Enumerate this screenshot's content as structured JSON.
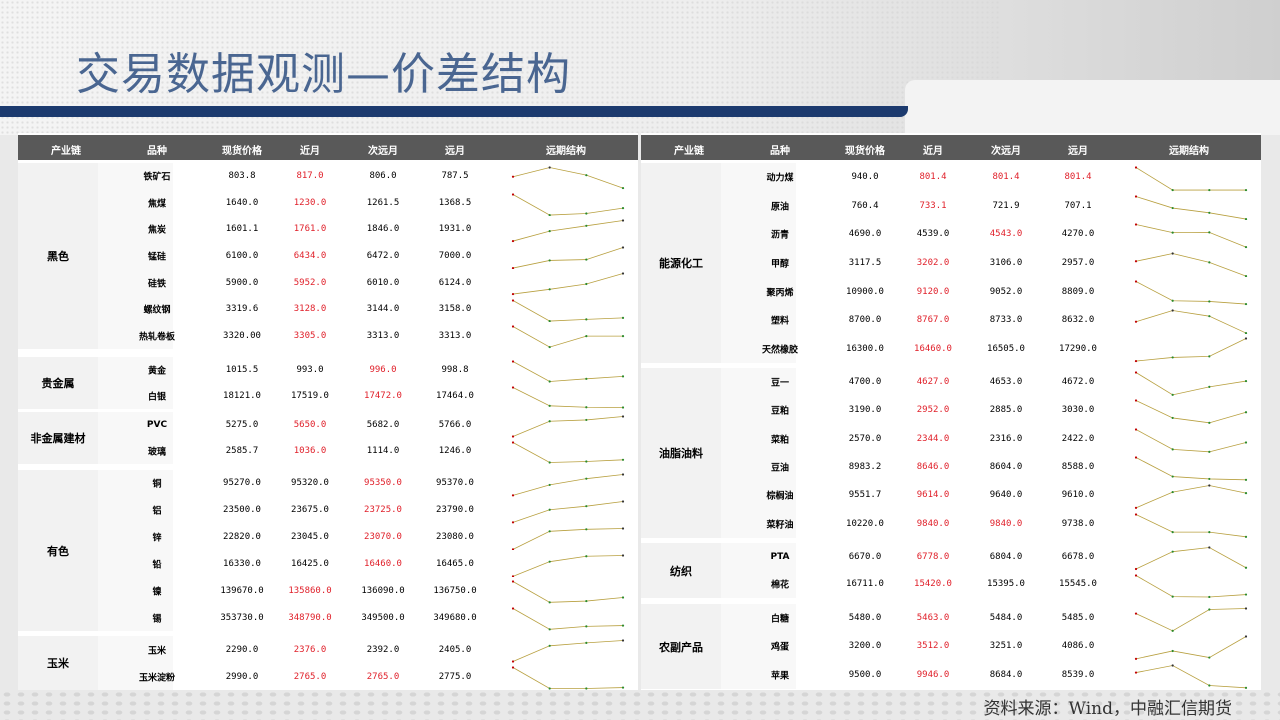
{
  "title": "交易数据观测—价差结构",
  "source": "资料来源：Wind，中融汇信期货",
  "headers": [
    "产业链",
    "品种",
    "现货价格",
    "近月",
    "次远月",
    "远月",
    "远期结构"
  ],
  "colors": {
    "header_bg": "#595959",
    "highlight": "#e0202a",
    "title": "#4a6691",
    "sparkline": "#b8a040"
  },
  "left": [
    {
      "chain": "黑色",
      "rows": [
        {
          "name": "铁矿石",
          "spot": "803.8",
          "near": "817.0",
          "next": "806.0",
          "far": "787.5",
          "red": [
            1
          ]
        },
        {
          "name": "焦煤",
          "spot": "1640.0",
          "near": "1230.0",
          "next": "1261.5",
          "far": "1368.5",
          "red": [
            1
          ]
        },
        {
          "name": "焦炭",
          "spot": "1601.1",
          "near": "1761.0",
          "next": "1846.0",
          "far": "1931.0",
          "red": [
            1
          ]
        },
        {
          "name": "锰硅",
          "spot": "6100.0",
          "near": "6434.0",
          "next": "6472.0",
          "far": "7000.0",
          "red": [
            1
          ]
        },
        {
          "name": "硅铁",
          "spot": "5900.0",
          "near": "5952.0",
          "next": "6010.0",
          "far": "6124.0",
          "red": [
            1
          ]
        },
        {
          "name": "螺纹钢",
          "spot": "3319.6",
          "near": "3128.0",
          "next": "3144.0",
          "far": "3158.0",
          "red": [
            1
          ]
        },
        {
          "name": "热轧卷板",
          "spot": "3320.00",
          "near": "3305.0",
          "next": "3313.0",
          "far": "3313.0",
          "red": [
            1
          ]
        }
      ]
    },
    {
      "chain": "贵金属",
      "rows": [
        {
          "name": "黄金",
          "spot": "1015.5",
          "near": "993.0",
          "next": "996.0",
          "far": "998.8",
          "red": [
            2
          ]
        },
        {
          "name": "白银",
          "spot": "18121.0",
          "near": "17519.0",
          "next": "17472.0",
          "far": "17464.0",
          "red": [
            2
          ]
        }
      ]
    },
    {
      "chain": "非金属建材",
      "rows": [
        {
          "name": "PVC",
          "spot": "5275.0",
          "near": "5650.0",
          "next": "5682.0",
          "far": "5766.0",
          "red": [
            1
          ]
        },
        {
          "name": "玻璃",
          "spot": "2585.7",
          "near": "1036.0",
          "next": "1114.0",
          "far": "1246.0",
          "red": [
            1
          ]
        }
      ]
    },
    {
      "chain": "有色",
      "rows": [
        {
          "name": "铜",
          "spot": "95270.0",
          "near": "95320.0",
          "next": "95350.0",
          "far": "95370.0",
          "red": [
            2
          ]
        },
        {
          "name": "铝",
          "spot": "23500.0",
          "near": "23675.0",
          "next": "23725.0",
          "far": "23790.0",
          "red": [
            2
          ]
        },
        {
          "name": "锌",
          "spot": "22820.0",
          "near": "23045.0",
          "next": "23070.0",
          "far": "23080.0",
          "red": [
            2
          ]
        },
        {
          "name": "铅",
          "spot": "16330.0",
          "near": "16425.0",
          "next": "16460.0",
          "far": "16465.0",
          "red": [
            2
          ]
        },
        {
          "name": "镍",
          "spot": "139670.0",
          "near": "135860.0",
          "next": "136090.0",
          "far": "136750.0",
          "red": [
            1
          ]
        },
        {
          "name": "锡",
          "spot": "353730.0",
          "near": "348790.0",
          "next": "349500.0",
          "far": "349680.0",
          "red": [
            1
          ]
        }
      ]
    },
    {
      "chain": "玉米",
      "rows": [
        {
          "name": "玉米",
          "spot": "2290.0",
          "near": "2376.0",
          "next": "2392.0",
          "far": "2405.0",
          "red": [
            1
          ]
        },
        {
          "name": "玉米淀粉",
          "spot": "2990.0",
          "near": "2765.0",
          "next": "2765.0",
          "far": "2775.0",
          "red": [
            1,
            2
          ]
        }
      ]
    }
  ],
  "right": [
    {
      "chain": "能源化工",
      "rows": [
        {
          "name": "动力煤",
          "spot": "940.0",
          "near": "801.4",
          "next": "801.4",
          "far": "801.4",
          "red": [
            1,
            2,
            3
          ]
        },
        {
          "name": "原油",
          "spot": "760.4",
          "near": "733.1",
          "next": "721.9",
          "far": "707.1",
          "red": [
            1
          ]
        },
        {
          "name": "沥青",
          "spot": "4690.0",
          "near": "4539.0",
          "next": "4543.0",
          "far": "4270.0",
          "red": [
            2
          ]
        },
        {
          "name": "甲醇",
          "spot": "3117.5",
          "near": "3202.0",
          "next": "3106.0",
          "far": "2957.0",
          "red": [
            1
          ]
        },
        {
          "name": "聚丙烯",
          "spot": "10900.0",
          "near": "9120.0",
          "next": "9052.0",
          "far": "8809.0",
          "red": [
            1
          ]
        },
        {
          "name": "塑料",
          "spot": "8700.0",
          "near": "8767.0",
          "next": "8733.0",
          "far": "8632.0",
          "red": [
            1
          ]
        },
        {
          "name": "天然橡胶",
          "spot": "16300.0",
          "near": "16460.0",
          "next": "16505.0",
          "far": "17290.0",
          "red": [
            1
          ]
        }
      ]
    },
    {
      "chain": "油脂油料",
      "rows": [
        {
          "name": "豆一",
          "spot": "4700.0",
          "near": "4627.0",
          "next": "4653.0",
          "far": "4672.0",
          "red": [
            1
          ]
        },
        {
          "name": "豆粕",
          "spot": "3190.0",
          "near": "2952.0",
          "next": "2885.0",
          "far": "3030.0",
          "red": [
            1
          ]
        },
        {
          "name": "菜粕",
          "spot": "2570.0",
          "near": "2344.0",
          "next": "2316.0",
          "far": "2422.0",
          "red": [
            1
          ]
        },
        {
          "name": "豆油",
          "spot": "8983.2",
          "near": "8646.0",
          "next": "8604.0",
          "far": "8588.0",
          "red": [
            1
          ]
        },
        {
          "name": "棕榈油",
          "spot": "9551.7",
          "near": "9614.0",
          "next": "9640.0",
          "far": "9610.0",
          "red": [
            1
          ]
        },
        {
          "name": "菜籽油",
          "spot": "10220.0",
          "near": "9840.0",
          "next": "9840.0",
          "far": "9738.0",
          "red": [
            1,
            2
          ]
        }
      ]
    },
    {
      "chain": "纺织",
      "rows": [
        {
          "name": "PTA",
          "spot": "6670.0",
          "near": "6778.0",
          "next": "6804.0",
          "far": "6678.0",
          "red": [
            1
          ]
        },
        {
          "name": "棉花",
          "spot": "16711.0",
          "near": "15420.0",
          "next": "15395.0",
          "far": "15545.0",
          "red": [
            1
          ]
        }
      ]
    },
    {
      "chain": "农副产品",
      "rows": [
        {
          "name": "白糖",
          "spot": "5480.0",
          "near": "5463.0",
          "next": "5484.0",
          "far": "5485.0",
          "red": [
            1
          ]
        },
        {
          "name": "鸡蛋",
          "spot": "3200.0",
          "near": "3512.0",
          "next": "3251.0",
          "far": "4086.0",
          "red": [
            1
          ]
        },
        {
          "name": "苹果",
          "spot": "9500.0",
          "near": "9946.0",
          "next": "8684.0",
          "far": "8539.0",
          "red": [
            1
          ]
        }
      ]
    }
  ]
}
